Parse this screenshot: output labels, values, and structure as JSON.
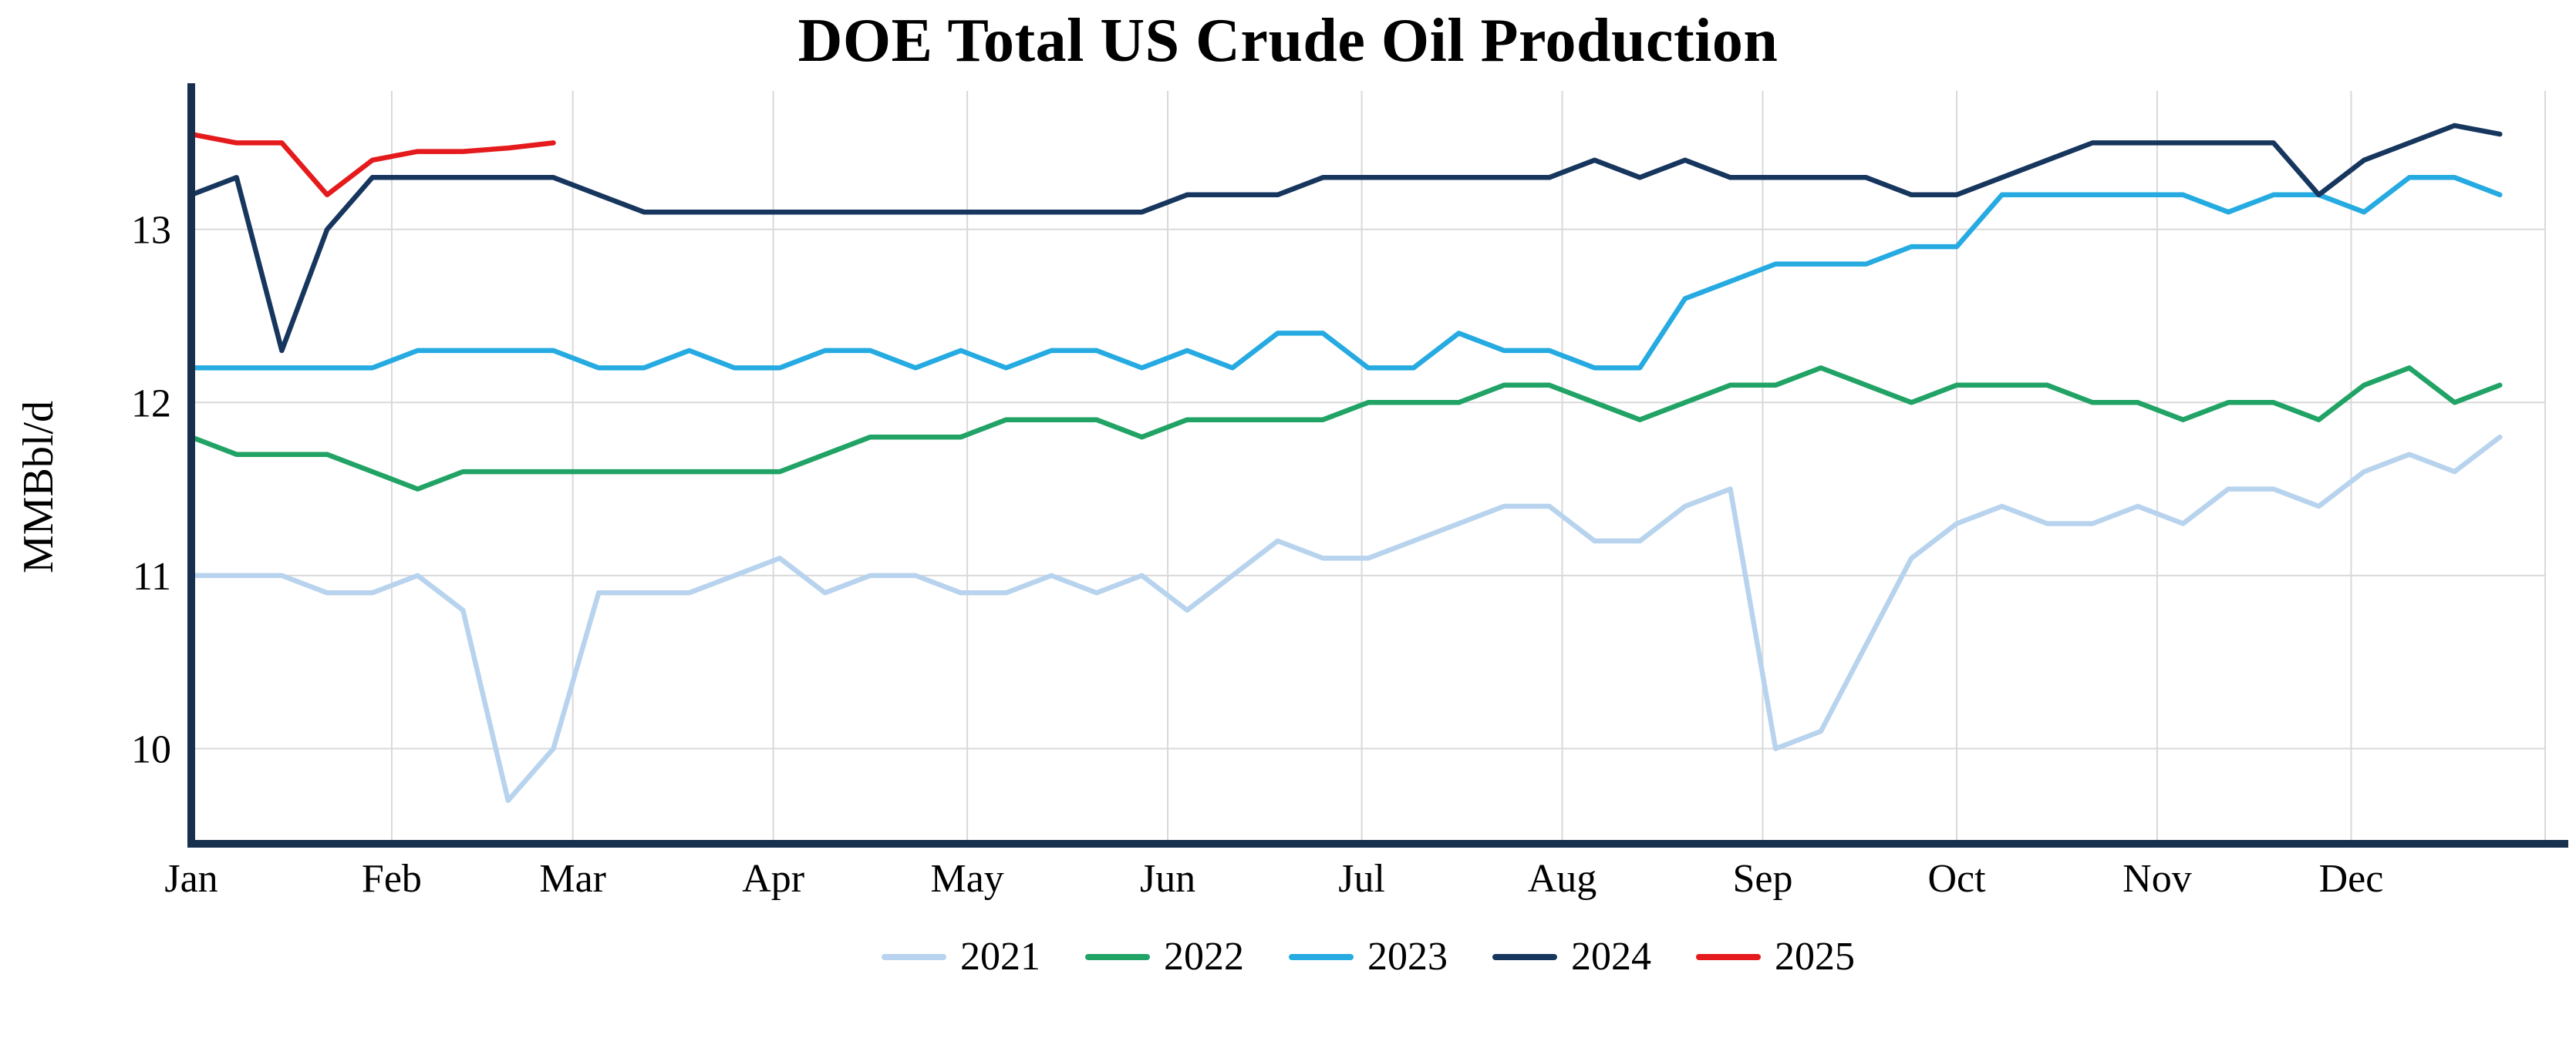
{
  "title": "DOE Total US Crude Oil Production",
  "chart_data": {
    "type": "line",
    "title": "DOE Total US Crude Oil Production",
    "xlabel": "",
    "ylabel": "MMBbl/d",
    "x_unit": "week of year (weekly data, Jan through Dec)",
    "x_tick_labels": [
      "Jan",
      "Feb",
      "Mar",
      "Apr",
      "May",
      "Jun",
      "Jul",
      "Aug",
      "Sep",
      "Oct",
      "Nov",
      "Dec"
    ],
    "y_ticks": [
      10,
      11,
      12,
      13
    ],
    "ylim": [
      9.45,
      13.8
    ],
    "grid": true,
    "grid_color": "#d9d9d9",
    "axis_color": "#16304d",
    "legend_position": "bottom",
    "series": [
      {
        "name": "2021",
        "color": "#b8d3ed",
        "values": [
          11.0,
          11.0,
          11.0,
          10.9,
          10.9,
          11.0,
          10.8,
          9.7,
          10.0,
          10.9,
          10.9,
          10.9,
          11.0,
          11.1,
          10.9,
          11.0,
          11.0,
          10.9,
          10.9,
          11.0,
          10.9,
          11.0,
          10.8,
          11.0,
          11.2,
          11.1,
          11.1,
          11.2,
          11.3,
          11.4,
          11.4,
          11.2,
          11.2,
          11.4,
          11.5,
          10.0,
          10.1,
          10.6,
          11.1,
          11.3,
          11.4,
          11.3,
          11.3,
          11.4,
          11.3,
          11.5,
          11.5,
          11.4,
          11.6,
          11.7,
          11.6,
          11.8
        ]
      },
      {
        "name": "2022",
        "color": "#21a366",
        "values": [
          11.8,
          11.7,
          11.7,
          11.7,
          11.6,
          11.5,
          11.6,
          11.6,
          11.6,
          11.6,
          11.6,
          11.6,
          11.6,
          11.6,
          11.7,
          11.8,
          11.8,
          11.8,
          11.9,
          11.9,
          11.9,
          11.8,
          11.9,
          11.9,
          11.9,
          11.9,
          12.0,
          12.0,
          12.0,
          12.1,
          12.1,
          12.0,
          11.9,
          12.0,
          12.1,
          12.1,
          12.2,
          12.1,
          12.0,
          12.1,
          12.1,
          12.1,
          12.0,
          12.0,
          11.9,
          12.0,
          12.0,
          11.9,
          12.1,
          12.2,
          12.0,
          12.1
        ]
      },
      {
        "name": "2023",
        "color": "#25aae1",
        "values": [
          12.2,
          12.2,
          12.2,
          12.2,
          12.2,
          12.3,
          12.3,
          12.3,
          12.3,
          12.2,
          12.2,
          12.3,
          12.2,
          12.2,
          12.3,
          12.3,
          12.2,
          12.3,
          12.2,
          12.3,
          12.3,
          12.2,
          12.3,
          12.2,
          12.4,
          12.4,
          12.2,
          12.2,
          12.4,
          12.3,
          12.3,
          12.2,
          12.2,
          12.6,
          12.7,
          12.8,
          12.8,
          12.8,
          12.9,
          12.9,
          13.2,
          13.2,
          13.2,
          13.2,
          13.2,
          13.1,
          13.2,
          13.2,
          13.1,
          13.3,
          13.3,
          13.2
        ]
      },
      {
        "name": "2024",
        "color": "#17365e",
        "values": [
          13.2,
          13.3,
          12.3,
          13.0,
          13.3,
          13.3,
          13.3,
          13.3,
          13.3,
          13.2,
          13.1,
          13.1,
          13.1,
          13.1,
          13.1,
          13.1,
          13.1,
          13.1,
          13.1,
          13.1,
          13.1,
          13.1,
          13.2,
          13.2,
          13.2,
          13.3,
          13.3,
          13.3,
          13.3,
          13.3,
          13.3,
          13.4,
          13.3,
          13.4,
          13.3,
          13.3,
          13.3,
          13.3,
          13.2,
          13.2,
          13.3,
          13.4,
          13.5,
          13.5,
          13.5,
          13.5,
          13.5,
          13.2,
          13.4,
          13.5,
          13.6,
          13.55
        ]
      },
      {
        "name": "2025",
        "color": "#e41a1c",
        "values": [
          13.55,
          13.5,
          13.5,
          13.2,
          13.4,
          13.45,
          13.45,
          13.47,
          13.5
        ]
      }
    ]
  }
}
